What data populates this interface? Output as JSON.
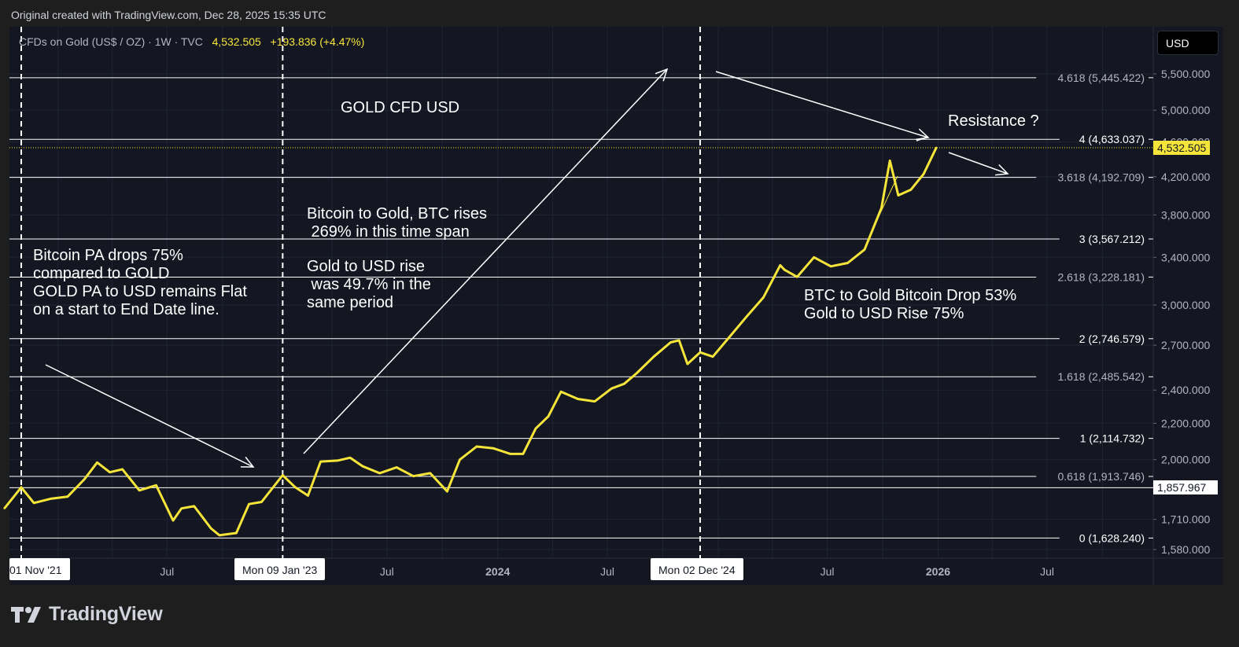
{
  "header": {
    "caption": "Original created with TradingView.com, Dec 28, 2025 15:35 UTC"
  },
  "symbol": {
    "name": "CFDs on Gold (US$ / OZ) · 1W · TVC",
    "last": "4,532.505",
    "change": "+193.836 (+4.47%)"
  },
  "currency": {
    "label": "USD"
  },
  "brand": {
    "logo_text": "TradingView"
  },
  "colors": {
    "price_line": "#f5e53a",
    "background": "#141722",
    "fib_line": "#ffffff",
    "accent": "#f5e53a"
  },
  "annotations": {
    "title": "GOLD CFD USD",
    "resistance": "Resistance ?",
    "left_note": "Bitcoin PA drops 75%\ncompared to GOLD\nGOLD PA to USD remains Flat\non a start to End Date line.",
    "middle_note_1": "Bitcoin to Gold, BTC rises\n 269% in this time span",
    "middle_note_2": "Gold to USD rise\n was 49.7% in the\nsame period",
    "right_note": "BTC to Gold Bitcoin Drop 53%\nGold to USD Rise 75%"
  },
  "chart_data": {
    "type": "line",
    "series": [
      {
        "name": "CFDs on Gold (US$ / OZ)",
        "x": [
          "2021-10-04",
          "2021-11-01",
          "2021-11-22",
          "2021-12-20",
          "2022-01-17",
          "2022-02-14",
          "2022-03-07",
          "2022-03-28",
          "2022-04-18",
          "2022-05-16",
          "2022-06-13",
          "2022-07-11",
          "2022-07-25",
          "2022-08-15",
          "2022-09-12",
          "2022-09-26",
          "2022-10-24",
          "2022-11-14",
          "2022-12-05",
          "2023-01-09",
          "2023-01-30",
          "2023-02-20",
          "2023-03-13",
          "2023-04-10",
          "2023-05-01",
          "2023-05-22",
          "2023-06-19",
          "2023-07-17",
          "2023-08-14",
          "2023-09-11",
          "2023-10-09",
          "2023-10-30",
          "2023-11-27",
          "2023-12-25",
          "2024-01-22",
          "2024-02-12",
          "2024-03-04",
          "2024-03-25",
          "2024-04-15",
          "2024-05-13",
          "2024-06-10",
          "2024-07-08",
          "2024-07-29",
          "2024-08-19",
          "2024-09-16",
          "2024-10-14",
          "2024-10-28",
          "2024-11-11",
          "2024-12-02",
          "2024-12-23",
          "2025-01-20",
          "2025-02-17",
          "2025-03-17",
          "2025-04-14",
          "2025-04-21",
          "2025-05-12",
          "2025-06-09",
          "2025-07-07",
          "2025-08-04",
          "2025-09-01",
          "2025-09-29",
          "2025-10-13",
          "2025-10-27",
          "2025-11-17",
          "2025-12-08",
          "2025-12-29"
        ],
        "values": [
          1760,
          1860,
          1785,
          1805,
          1815,
          1900,
          1985,
          1935,
          1950,
          1845,
          1870,
          1705,
          1760,
          1770,
          1670,
          1640,
          1650,
          1780,
          1790,
          1920,
          1860,
          1820,
          1990,
          1995,
          2010,
          1965,
          1930,
          1960,
          1915,
          1930,
          1840,
          2000,
          2070,
          2060,
          2030,
          2030,
          2170,
          2240,
          2390,
          2345,
          2330,
          2410,
          2440,
          2510,
          2620,
          2720,
          2735,
          2570,
          2650,
          2620,
          2760,
          2910,
          3060,
          3330,
          3290,
          3230,
          3400,
          3320,
          3350,
          3470,
          3870,
          4380,
          4000,
          4060,
          4230,
          4532.505
        ]
      }
    ],
    "yaxis": {
      "scale": "log",
      "ticks": [
        "5,500.000",
        "5,000.000",
        "4,600.000",
        "4,200.000",
        "3,800.000",
        "3,400.000",
        "3,000.000",
        "2,700.000",
        "2,400.000",
        "2,200.000",
        "2,000.000",
        "1,710.000",
        "1,580.000"
      ],
      "range": [
        1540,
        5900
      ]
    },
    "xaxis": {
      "ticks": [
        "Jul",
        "Jul",
        "2024",
        "Jul",
        "Jul",
        "2026",
        "Jul"
      ],
      "highlighted": [
        "01 Nov '21",
        "Mon 09 Jan '23",
        "Mon 02 Dec '24"
      ]
    },
    "fib_levels": [
      {
        "ratio": "4.618",
        "label": "4.618 (5,445.422)",
        "value": 5445.422
      },
      {
        "ratio": "4",
        "label": "4 (4,633.037)",
        "value": 4633.037
      },
      {
        "ratio": "3.618",
        "label": "3.618 (4,192.709)",
        "value": 4192.709
      },
      {
        "ratio": "3",
        "label": "3 (3,567.212)",
        "value": 3567.212
      },
      {
        "ratio": "2.618",
        "label": "2.618 (3,228.181)",
        "value": 3228.181
      },
      {
        "ratio": "2",
        "label": "2 (2,746.579)",
        "value": 2746.579
      },
      {
        "ratio": "1.618",
        "label": "1.618 (2,485.542)",
        "value": 2485.542
      },
      {
        "ratio": "1",
        "label": "1 (2,114.732)",
        "value": 2114.732
      },
      {
        "ratio": "0.618",
        "label": "0.618 (1,913.746)",
        "value": 1913.746
      },
      {
        "ratio": "0",
        "label": "0 (1,628.240)",
        "value": 1628.24
      }
    ],
    "price_labels": [
      {
        "label": "4,532.505",
        "value": 4532.505,
        "style": "last"
      },
      {
        "label": "1,857.967",
        "value": 1857.967,
        "style": "marker"
      }
    ],
    "vertical_markers": [
      "2021-11-01",
      "2023-01-09",
      "2024-12-02"
    ],
    "grid": true,
    "legend": "top-left"
  }
}
